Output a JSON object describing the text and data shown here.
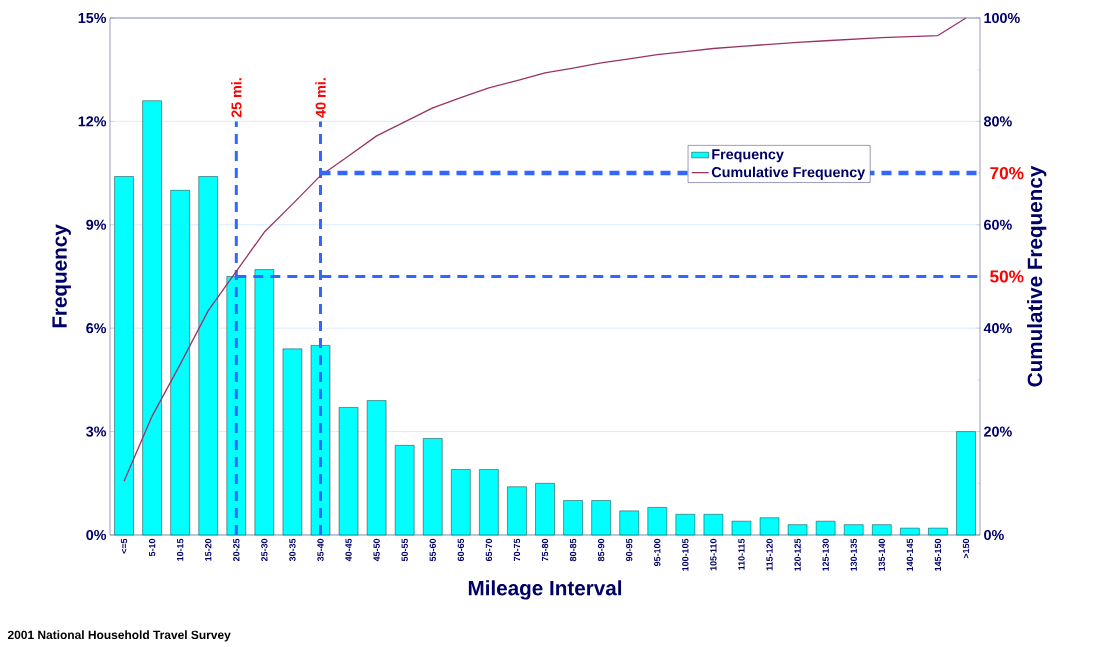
{
  "chart_data": {
    "type": "bar",
    "xlabel": "Mileage Interval",
    "ylabel": "Frequency",
    "y2label": "Cumulative Frequency",
    "categories": [
      "<=5",
      "5-10",
      "10-15",
      "15-20",
      "20-25",
      "25-30",
      "30-35",
      "35-40",
      "40-45",
      "45-50",
      "50-55",
      "55-60",
      "60-65",
      "65-70",
      "70-75",
      "75-80",
      "80-85",
      "85-90",
      "90-95",
      "95-100",
      "100-105",
      "105-110",
      "110-115",
      "115-120",
      "120-125",
      "125-130",
      "130-135",
      "135-140",
      "140-145",
      "145-150",
      ">150"
    ],
    "series": [
      {
        "name": "Frequency",
        "color": "#00ffff",
        "values": [
          10.4,
          12.6,
          10.0,
          10.4,
          7.5,
          7.7,
          5.4,
          5.5,
          3.7,
          3.9,
          2.6,
          2.8,
          1.9,
          1.9,
          1.4,
          1.5,
          1.0,
          1.0,
          0.7,
          0.8,
          0.6,
          0.6,
          0.4,
          0.5,
          0.3,
          0.4,
          0.3,
          0.3,
          0.2,
          0.2,
          3.0
        ]
      },
      {
        "name": "Cumulative Frequency",
        "type": "line",
        "axis": "y2",
        "color": "#993366",
        "values": [
          10.4,
          23.0,
          33.0,
          43.4,
          51.0,
          58.6,
          64.0,
          69.5,
          73.3,
          77.2,
          79.9,
          82.6,
          84.6,
          86.5,
          87.9,
          89.4,
          90.3,
          91.3,
          92.1,
          92.9,
          93.5,
          94.1,
          94.5,
          94.9,
          95.3,
          95.6,
          95.9,
          96.2,
          96.4,
          96.6,
          100
        ]
      }
    ],
    "ylim": [
      0,
      15
    ],
    "yticks": [
      {
        "value": 0,
        "label": "0%"
      },
      {
        "value": 3,
        "label": "3%"
      },
      {
        "value": 6,
        "label": "6%"
      },
      {
        "value": 9,
        "label": "9%"
      },
      {
        "value": 12,
        "label": "12%"
      },
      {
        "value": 15,
        "label": "15%"
      }
    ],
    "y2lim": [
      0,
      100
    ],
    "y2ticks": [
      {
        "value": 0,
        "label": "0%"
      },
      {
        "value": 20,
        "label": "20%"
      },
      {
        "value": 40,
        "label": "40%"
      },
      {
        "value": 60,
        "label": "60%"
      },
      {
        "value": 80,
        "label": "80%"
      },
      {
        "value": 100,
        "label": "100%"
      }
    ],
    "ref_lines": [
      {
        "axis": "x",
        "value": "20-25",
        "label": "25 mi.",
        "color": "#3366ff",
        "line_style": "dashed"
      },
      {
        "axis": "x",
        "value": "35-40",
        "label": "40 mi.",
        "color": "#3366ff",
        "line_style": "dashed"
      },
      {
        "axis": "y2",
        "value": 50,
        "label": "50%",
        "color": "#3366ff",
        "line_style": "dashed"
      },
      {
        "axis": "y2",
        "value": 70,
        "label": "70%",
        "color": "#3366ff",
        "line_style": "dashed"
      }
    ],
    "grid": "y",
    "legend": "top right",
    "annotations": [
      "2001 National Household Travel Survey"
    ]
  }
}
